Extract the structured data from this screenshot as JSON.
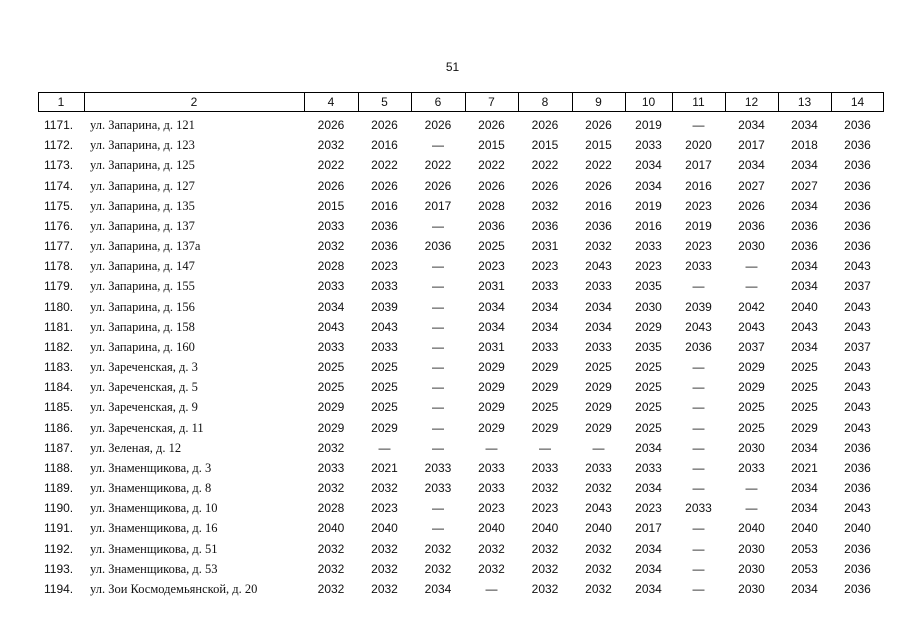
{
  "header": {
    "page_number": "51"
  },
  "table": {
    "columns": [
      "1",
      "2",
      "4",
      "5",
      "6",
      "7",
      "8",
      "9",
      "10",
      "11",
      "12",
      "13",
      "14"
    ],
    "rows": [
      [
        "1171.",
        "ул. Запарина, д. 121",
        "2026",
        "2026",
        "2026",
        "2026",
        "2026",
        "2026",
        "2019",
        "—",
        "2034",
        "2034",
        "2036"
      ],
      [
        "1172.",
        "ул. Запарина, д. 123",
        "2032",
        "2016",
        "—",
        "2015",
        "2015",
        "2015",
        "2033",
        "2020",
        "2017",
        "2018",
        "2036"
      ],
      [
        "1173.",
        "ул. Запарина, д. 125",
        "2022",
        "2022",
        "2022",
        "2022",
        "2022",
        "2022",
        "2034",
        "2017",
        "2034",
        "2034",
        "2036"
      ],
      [
        "1174.",
        "ул. Запарина, д. 127",
        "2026",
        "2026",
        "2026",
        "2026",
        "2026",
        "2026",
        "2034",
        "2016",
        "2027",
        "2027",
        "2036"
      ],
      [
        "1175.",
        "ул. Запарина, д. 135",
        "2015",
        "2016",
        "2017",
        "2028",
        "2032",
        "2016",
        "2019",
        "2023",
        "2026",
        "2034",
        "2036"
      ],
      [
        "1176.",
        "ул. Запарина, д. 137",
        "2033",
        "2036",
        "—",
        "2036",
        "2036",
        "2036",
        "2016",
        "2019",
        "2036",
        "2036",
        "2036"
      ],
      [
        "1177.",
        "ул. Запарина, д. 137а",
        "2032",
        "2036",
        "2036",
        "2025",
        "2031",
        "2032",
        "2033",
        "2023",
        "2030",
        "2036",
        "2036"
      ],
      [
        "1178.",
        "ул. Запарина, д. 147",
        "2028",
        "2023",
        "—",
        "2023",
        "2023",
        "2043",
        "2023",
        "2033",
        "—",
        "2034",
        "2043"
      ],
      [
        "1179.",
        "ул. Запарина, д. 155",
        "2033",
        "2033",
        "—",
        "2031",
        "2033",
        "2033",
        "2035",
        "—",
        "—",
        "2034",
        "2037"
      ],
      [
        "1180.",
        "ул. Запарина, д. 156",
        "2034",
        "2039",
        "—",
        "2034",
        "2034",
        "2034",
        "2030",
        "2039",
        "2042",
        "2040",
        "2043"
      ],
      [
        "1181.",
        "ул. Запарина, д. 158",
        "2043",
        "2043",
        "—",
        "2034",
        "2034",
        "2034",
        "2029",
        "2043",
        "2043",
        "2043",
        "2043"
      ],
      [
        "1182.",
        "ул. Запарина, д. 160",
        "2033",
        "2033",
        "—",
        "2031",
        "2033",
        "2033",
        "2035",
        "2036",
        "2037",
        "2034",
        "2037"
      ],
      [
        "1183.",
        "ул. Зареченская, д. 3",
        "2025",
        "2025",
        "—",
        "2029",
        "2029",
        "2025",
        "2025",
        "—",
        "2029",
        "2025",
        "2043"
      ],
      [
        "1184.",
        "ул. Зареченская, д. 5",
        "2025",
        "2025",
        "—",
        "2029",
        "2029",
        "2029",
        "2025",
        "—",
        "2029",
        "2025",
        "2043"
      ],
      [
        "1185.",
        "ул. Зареченская, д. 9",
        "2029",
        "2025",
        "—",
        "2029",
        "2025",
        "2029",
        "2025",
        "—",
        "2025",
        "2025",
        "2043"
      ],
      [
        "1186.",
        "ул. Зареченская, д. 11",
        "2029",
        "2029",
        "—",
        "2029",
        "2029",
        "2029",
        "2025",
        "—",
        "2025",
        "2029",
        "2043"
      ],
      [
        "1187.",
        "ул. Зеленая, д. 12",
        "2032",
        "—",
        "—",
        "—",
        "—",
        "—",
        "2034",
        "—",
        "2030",
        "2034",
        "2036"
      ],
      [
        "1188.",
        "ул. Знаменщикова, д. 3",
        "2033",
        "2021",
        "2033",
        "2033",
        "2033",
        "2033",
        "2033",
        "—",
        "2033",
        "2021",
        "2036"
      ],
      [
        "1189.",
        "ул. Знаменщикова, д. 8",
        "2032",
        "2032",
        "2033",
        "2033",
        "2032",
        "2032",
        "2034",
        "—",
        "—",
        "2034",
        "2036"
      ],
      [
        "1190.",
        "ул. Знаменщикова, д. 10",
        "2028",
        "2023",
        "—",
        "2023",
        "2023",
        "2043",
        "2023",
        "2033",
        "—",
        "2034",
        "2043"
      ],
      [
        "1191.",
        "ул. Знаменщикова, д. 16",
        "2040",
        "2040",
        "—",
        "2040",
        "2040",
        "2040",
        "2017",
        "—",
        "2040",
        "2040",
        "2040"
      ],
      [
        "1192.",
        "ул. Знаменщикова, д. 51",
        "2032",
        "2032",
        "2032",
        "2032",
        "2032",
        "2032",
        "2034",
        "—",
        "2030",
        "2053",
        "2036"
      ],
      [
        "1193.",
        "ул. Знаменщикова, д. 53",
        "2032",
        "2032",
        "2032",
        "2032",
        "2032",
        "2032",
        "2034",
        "—",
        "2030",
        "2053",
        "2036"
      ],
      [
        "1194.",
        "ул. Зои Космодемьянской, д. 20",
        "2032",
        "2032",
        "2034",
        "—",
        "2032",
        "2032",
        "2034",
        "—",
        "2030",
        "2034",
        "2036"
      ]
    ]
  }
}
